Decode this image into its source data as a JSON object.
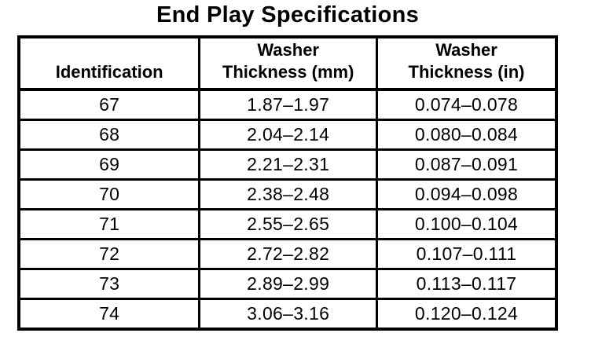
{
  "title": "End Play Specifications",
  "table": {
    "headers": [
      {
        "lines": [
          "Identification"
        ]
      },
      {
        "lines": [
          "Washer",
          "Thickness (mm)"
        ]
      },
      {
        "lines": [
          "Washer",
          "Thickness (in)"
        ]
      }
    ],
    "rows": [
      {
        "id": "67",
        "mm": "1.87–1.97",
        "inch": "0.074–0.078"
      },
      {
        "id": "68",
        "mm": "2.04–2.14",
        "inch": "0.080–0.084"
      },
      {
        "id": "69",
        "mm": "2.21–2.31",
        "inch": "0.087–0.091"
      },
      {
        "id": "70",
        "mm": "2.38–2.48",
        "inch": "0.094–0.098"
      },
      {
        "id": "71",
        "mm": "2.55–2.65",
        "inch": "0.100–0.104"
      },
      {
        "id": "72",
        "mm": "2.72–2.82",
        "inch": "0.107–0.111"
      },
      {
        "id": "73",
        "mm": "2.89–2.99",
        "inch": "0.113–0.117"
      },
      {
        "id": "74",
        "mm": "3.06–3.16",
        "inch": "0.120–0.124"
      }
    ]
  }
}
